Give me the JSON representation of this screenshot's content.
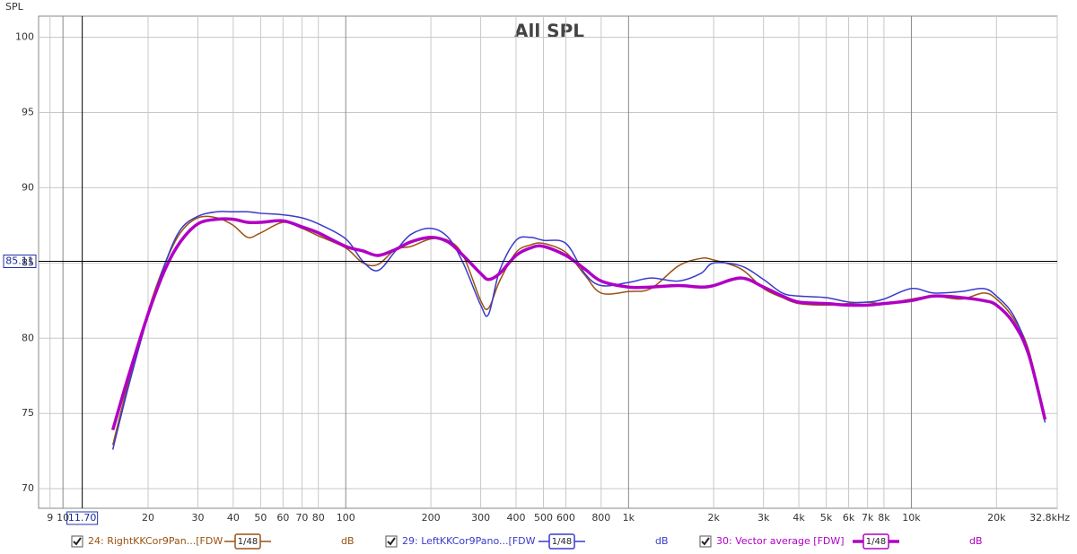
{
  "chart_data": {
    "type": "line",
    "title": "All SPL",
    "y_label": "SPL",
    "log_x": true,
    "grid": true,
    "xlim": [
      8.2,
      32800
    ],
    "ylim": [
      68.7,
      101.4
    ],
    "yticks": [
      70,
      75,
      80,
      85,
      90,
      95,
      100
    ],
    "xticks": [
      9,
      10,
      20,
      30,
      40,
      50,
      60,
      70,
      80,
      100,
      200,
      300,
      400,
      500,
      600,
      800,
      {
        "value": 1000,
        "label": "1k"
      },
      {
        "value": 2000,
        "label": "2k"
      },
      {
        "value": 3000,
        "label": "3k"
      },
      {
        "value": 4000,
        "label": "4k"
      },
      {
        "value": 5000,
        "label": "5k"
      },
      {
        "value": 6000,
        "label": "6k"
      },
      {
        "value": 7000,
        "label": "7k"
      },
      {
        "value": 8000,
        "label": "8k"
      },
      {
        "value": 10000,
        "label": "10k"
      },
      {
        "value": 20000,
        "label": "20k"
      },
      {
        "value": 32800,
        "label": "32.8kHz"
      }
    ],
    "cursor": {
      "x": {
        "value": 11.7,
        "label": "11.70"
      },
      "y": 85.11
    },
    "x": [
      15,
      17,
      20,
      23,
      26,
      30,
      35,
      40,
      45,
      50,
      60,
      70,
      80,
      100,
      115,
      130,
      150,
      170,
      200,
      230,
      260,
      300,
      320,
      350,
      400,
      450,
      500,
      600,
      700,
      800,
      1000,
      1200,
      1500,
      1800,
      2000,
      2500,
      3000,
      3500,
      4000,
      5000,
      6000,
      7000,
      8000,
      10000,
      12000,
      15000,
      18000,
      20000,
      23000,
      26000,
      29700
    ],
    "series": [
      {
        "name": "24: RightKKCor9Pan...[FDW",
        "smoothing": "1/48",
        "unit": "dB",
        "color": "#9a5212",
        "width": 1.5,
        "values": [
          72.9,
          77.0,
          81.8,
          85.0,
          87.0,
          88.0,
          88.0,
          87.5,
          86.7,
          87.0,
          87.7,
          87.3,
          86.8,
          86.0,
          85.0,
          84.9,
          85.9,
          86.1,
          86.6,
          86.5,
          85.5,
          82.5,
          82.0,
          83.8,
          85.7,
          86.2,
          86.3,
          85.7,
          84.2,
          83.0,
          83.1,
          83.3,
          84.8,
          85.3,
          85.2,
          84.6,
          83.3,
          82.7,
          82.3,
          82.2,
          82.3,
          82.4,
          82.3,
          82.6,
          82.8,
          82.6,
          83.0,
          82.6,
          81.3,
          79.2,
          74.6
        ]
      },
      {
        "name": "29: LeftKKCor9Pano...[FDW",
        "smoothing": "1/48",
        "unit": "dB",
        "color": "#3a3acc",
        "width": 1.5,
        "values": [
          72.6,
          76.7,
          81.5,
          85.0,
          87.2,
          88.1,
          88.4,
          88.4,
          88.4,
          88.3,
          88.2,
          88.0,
          87.6,
          86.6,
          85.1,
          84.5,
          85.8,
          86.9,
          87.3,
          86.7,
          85.0,
          82.2,
          81.6,
          84.5,
          86.5,
          86.7,
          86.5,
          86.3,
          84.3,
          83.5,
          83.7,
          84.0,
          83.8,
          84.3,
          85.0,
          84.8,
          83.9,
          83.0,
          82.8,
          82.7,
          82.4,
          82.4,
          82.6,
          83.3,
          83.0,
          83.1,
          83.3,
          82.8,
          81.5,
          79.0,
          74.4
        ]
      },
      {
        "name": "30: Vector average [FDW]",
        "smoothing": "1/48",
        "unit": "dB",
        "color": "#b000c4",
        "width": 3.5,
        "values": [
          73.9,
          77.4,
          81.6,
          84.6,
          86.4,
          87.6,
          87.9,
          87.9,
          87.7,
          87.7,
          87.8,
          87.4,
          87.0,
          86.1,
          85.8,
          85.5,
          85.9,
          86.4,
          86.7,
          86.4,
          85.5,
          84.3,
          83.9,
          84.3,
          85.5,
          86.0,
          86.1,
          85.5,
          84.6,
          83.8,
          83.4,
          83.4,
          83.5,
          83.4,
          83.5,
          84.0,
          83.4,
          82.8,
          82.4,
          82.3,
          82.2,
          82.2,
          82.3,
          82.5,
          82.8,
          82.7,
          82.5,
          82.2,
          81.0,
          78.9,
          74.6
        ]
      }
    ]
  }
}
